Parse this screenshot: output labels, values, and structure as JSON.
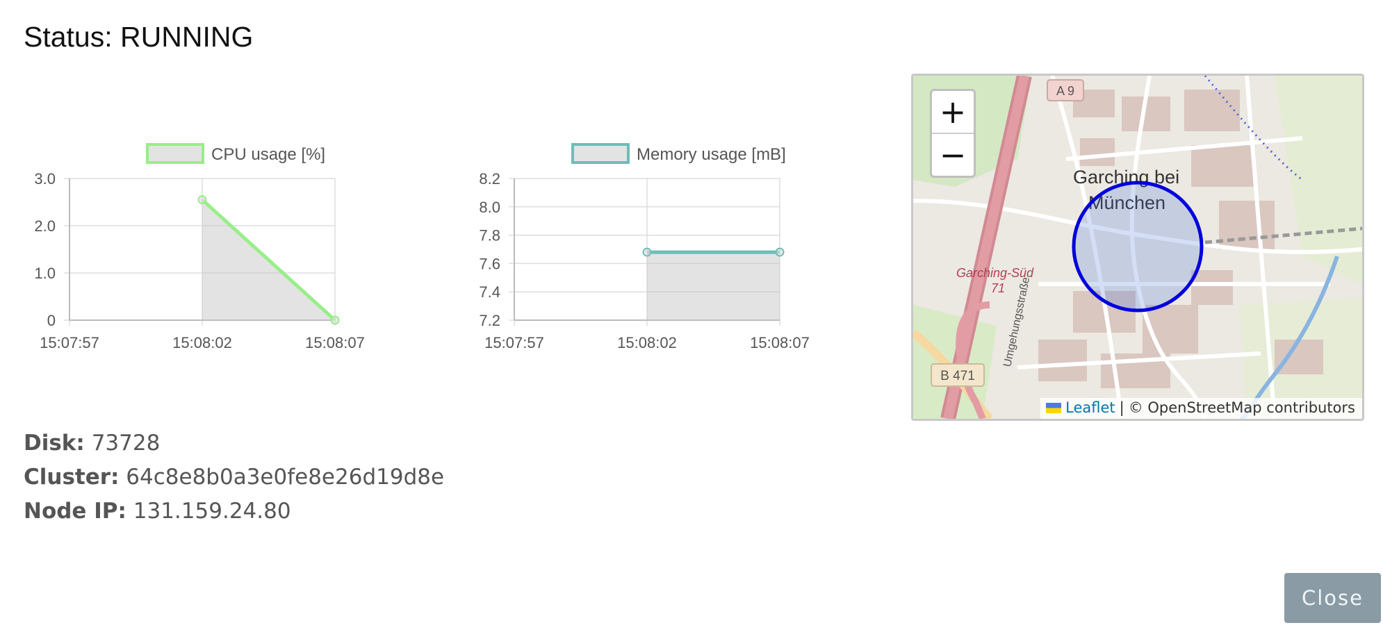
{
  "status_title": "Status: RUNNING",
  "charts": {
    "cpu": {
      "legend": "CPU usage [%]",
      "color": "#98ee88",
      "y_ticks": [
        "3.0",
        "2.0",
        "1.0",
        "0"
      ],
      "x_ticks": [
        "15:07:57",
        "15:08:02",
        "15:08:07"
      ]
    },
    "memory": {
      "legend": "Memory usage [mB]",
      "color": "#6fbcb8",
      "y_ticks": [
        "8.2",
        "8.0",
        "7.8",
        "7.6",
        "7.4",
        "7.2"
      ],
      "x_ticks": [
        "15:07:57",
        "15:08:02",
        "15:08:07"
      ]
    }
  },
  "chart_data": [
    {
      "type": "area",
      "series": [
        {
          "name": "CPU usage [%]",
          "x": [
            "15:08:02",
            "15:08:07"
          ],
          "values": [
            2.55,
            0
          ]
        }
      ],
      "x_range": [
        "15:07:57",
        "15:08:07"
      ],
      "ylim": [
        0,
        3.0
      ],
      "grid": true,
      "legend": "top"
    },
    {
      "type": "area",
      "series": [
        {
          "name": "Memory usage [mB]",
          "x": [
            "15:08:02",
            "15:08:07"
          ],
          "values": [
            7.68,
            7.68
          ]
        }
      ],
      "x_range": [
        "15:07:57",
        "15:08:07"
      ],
      "ylim": [
        7.2,
        8.2
      ],
      "grid": true,
      "legend": "top"
    }
  ],
  "info": {
    "disk_label": "Disk:",
    "disk_value": "73728",
    "cluster_label": "Cluster:",
    "cluster_value": "64c8e8b0a3e0fe8e26d19d8e",
    "ip_label": "Node IP:",
    "ip_value": "131.159.24.80"
  },
  "map": {
    "zoom_in": "+",
    "zoom_out": "−",
    "place_name_1": "Garching bei",
    "place_name_2": "München",
    "road_a9": "A 9",
    "road_b471": "B 471",
    "exit_label": "Garching-Süd",
    "exit_number": "71",
    "street_label": "Umgehungsstraße",
    "attribution_link": "Leaflet",
    "attribution_sep": "|",
    "attribution_text": "© OpenStreetMap contributors",
    "circle_color": "#0000dd"
  },
  "close_label": "Close"
}
